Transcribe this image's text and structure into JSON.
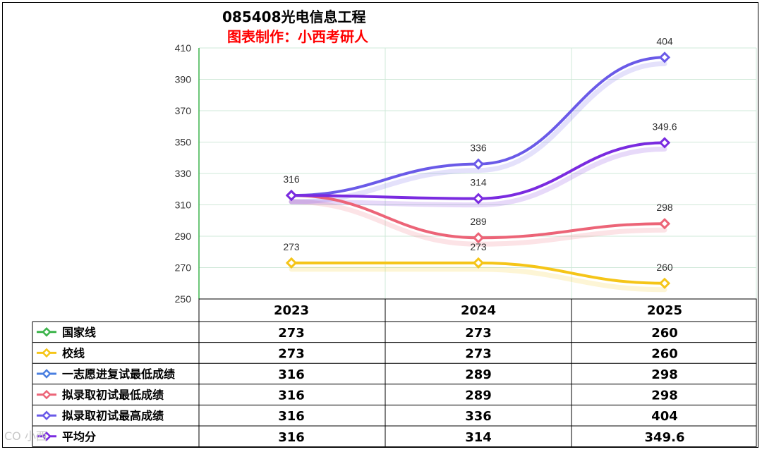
{
  "title": "085408光电信息工程",
  "subtitle": "图表制作：小西考研人",
  "watermark": "CO 小西",
  "chart_data": {
    "type": "line",
    "title": "085408光电信息工程",
    "subtitle": "图表制作：小西考研人",
    "categories": [
      "2023",
      "2024",
      "2025"
    ],
    "ylim": [
      250,
      410
    ],
    "yticks": [
      410,
      390,
      370,
      350,
      330,
      310,
      290,
      270,
      250
    ],
    "grid": true,
    "legend": "data-table-below",
    "series": [
      {
        "name": "国家线",
        "values": [
          273,
          273,
          260
        ],
        "display": [
          "273",
          "273",
          "260"
        ],
        "color": "#3cb44b",
        "plotted": false
      },
      {
        "name": "校线",
        "values": [
          273,
          273,
          260
        ],
        "display": [
          "273",
          "273",
          "260"
        ],
        "color": "#f5c518",
        "plotted": true,
        "labels": [
          "273",
          "273",
          "260"
        ]
      },
      {
        "name": "一志愿进复试最低成绩",
        "values": [
          316,
          289,
          298
        ],
        "display": [
          "316",
          "289",
          "298"
        ],
        "color": "#4a7fe0",
        "plotted": false
      },
      {
        "name": "拟录取初试最低成绩",
        "values": [
          316,
          289,
          298
        ],
        "display": [
          "316",
          "289",
          "298"
        ],
        "color": "#ec6477",
        "plotted": true,
        "labels": [
          "316",
          "289",
          "298"
        ]
      },
      {
        "name": "拟录取初试最高成绩",
        "values": [
          316,
          336,
          404
        ],
        "display": [
          "316",
          "336",
          "404"
        ],
        "color": "#6a5ae8",
        "plotted": true,
        "labels": [
          "",
          "336",
          "404"
        ]
      },
      {
        "name": "平均分",
        "values": [
          316,
          314,
          349.6
        ],
        "display": [
          "316",
          "314",
          "349.6"
        ],
        "color": "#7a2be0",
        "plotted": true,
        "labels": [
          "",
          "314",
          "349.6"
        ]
      }
    ]
  }
}
